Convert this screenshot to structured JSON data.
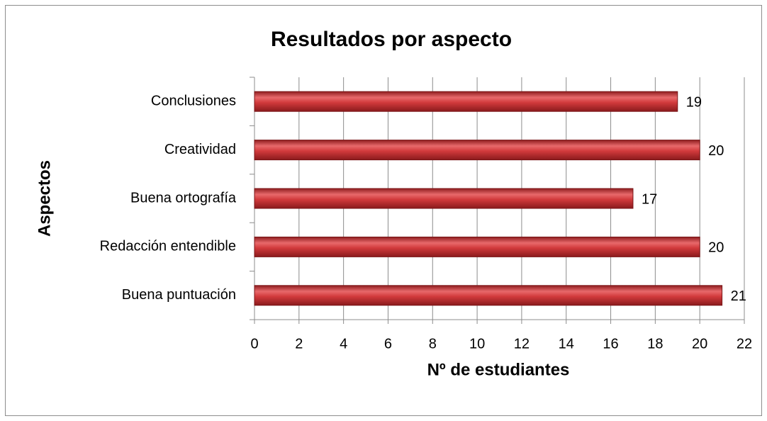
{
  "chart_data": {
    "type": "bar",
    "orientation": "horizontal",
    "title": "Resultados por aspecto",
    "x_label": "Nº de estudiantes",
    "y_label": "Aspectos",
    "categories": [
      "Conclusiones",
      "Creatividad",
      "Buena ortografía",
      "Redacción entendible",
      "Buena puntuación"
    ],
    "values": [
      19,
      20,
      17,
      20,
      21
    ],
    "color": "#c0282b",
    "xlim": [
      0,
      22
    ],
    "xticks": [
      0,
      2,
      4,
      6,
      8,
      10,
      12,
      14,
      16,
      18,
      20,
      22
    ],
    "grid": true
  }
}
